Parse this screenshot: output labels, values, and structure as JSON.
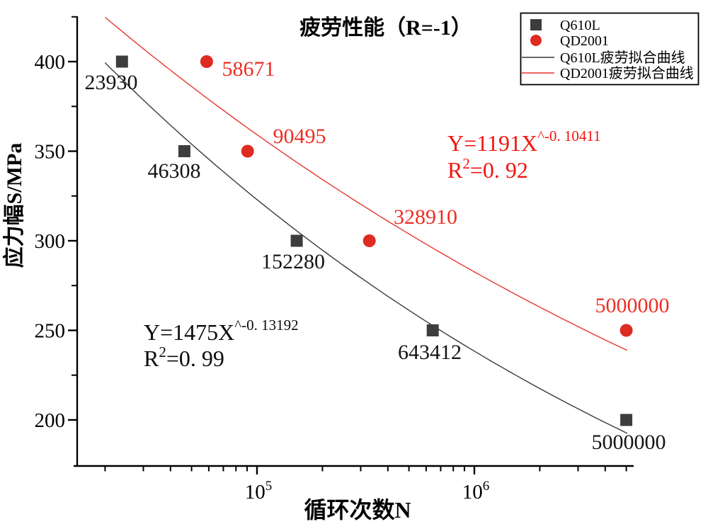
{
  "title": "疲劳性能（R=-1）",
  "legend": {
    "items": [
      {
        "label": "Q610L",
        "swatch": "square",
        "color": "#3d3d3d"
      },
      {
        "label": "QD2001",
        "swatch": "circle",
        "color": "#df2b22"
      },
      {
        "label": "Q610L疲劳拟合曲线",
        "swatch": "line",
        "color": "#3a3a3a"
      },
      {
        "label": "QD2001疲劳拟合曲线",
        "swatch": "line",
        "color": "#e8372c"
      }
    ]
  },
  "chart_data": {
    "type": "scatter",
    "title": "疲劳性能（R=-1）",
    "xlabel": "循环次数N",
    "ylabel": "应力幅S/MPa",
    "x_scale": "log10",
    "xlim": [
      15000,
      5500000
    ],
    "ylim": [
      175,
      425
    ],
    "grid": false,
    "legend_position": "top-right",
    "x_major_ticks": [
      100000,
      1000000
    ],
    "x_major_tick_labels": [
      {
        "base": "10",
        "sup": "5"
      },
      {
        "base": "10",
        "sup": "6"
      }
    ],
    "x_minor_tick_multipliers": [
      2,
      3,
      4,
      5,
      6,
      7,
      8,
      9
    ],
    "y_major_ticks": [
      200,
      250,
      300,
      350,
      400
    ],
    "y_minor_ticks": [
      225,
      275,
      325,
      375,
      425
    ],
    "series": [
      {
        "id": "q610l",
        "name": "Q610L",
        "type": "scatter",
        "marker": "square",
        "color": "#3d3d3d",
        "label_color": "#141414",
        "points": [
          {
            "x": 23930,
            "y": 400,
            "label": "23930",
            "label_dx": -15,
            "label_dy": 29
          },
          {
            "x": 46308,
            "y": 350,
            "label": "46308",
            "label_dx": -14,
            "label_dy": 27
          },
          {
            "x": 152280,
            "y": 300,
            "label": "152280",
            "label_dx": -5,
            "label_dy": 29
          },
          {
            "x": 643412,
            "y": 250,
            "label": "643412",
            "label_dx": -4,
            "label_dy": 30
          },
          {
            "x": 5000000,
            "y": 200,
            "label": "5000000",
            "label_dx": 3,
            "label_dy": 31
          }
        ]
      },
      {
        "id": "qd2001",
        "name": "QD2001",
        "type": "scatter",
        "marker": "circle",
        "color": "#df2b22",
        "label_color": "#ee2d22",
        "points": [
          {
            "x": 58671,
            "y": 400,
            "label": "58671",
            "label_dx": 59,
            "label_dy": 10
          },
          {
            "x": 90495,
            "y": 350,
            "label": "90495",
            "label_dx": 73,
            "label_dy": -22
          },
          {
            "x": 328910,
            "y": 300,
            "label": "328910",
            "label_dx": 79,
            "label_dy": -34
          },
          {
            "x": 5000000,
            "y": 250,
            "label": "5000000",
            "label_dx": 8,
            "label_dy": -36
          }
        ]
      },
      {
        "id": "q610l-fit",
        "name": "Q610L疲劳拟合曲线",
        "type": "fit_line",
        "color": "#3a3a3a",
        "a": 1475,
        "b": -0.13192,
        "r_squared": 0.99,
        "x_range": [
          20000,
          5050000
        ],
        "equation": {
          "base": "Y=1475X",
          "exponent": "^-0. 13192",
          "r2_base": "R",
          "r2_sup": "2",
          "r2_rest": "=0. 99"
        }
      },
      {
        "id": "qd2001-fit",
        "name": "QD2001疲劳拟合曲线",
        "type": "fit_line",
        "color": "#e8372c",
        "a": 1191,
        "b": -0.10411,
        "r_squared": 0.92,
        "x_range": [
          20000,
          5050000
        ],
        "equation": {
          "base": "Y=1191X",
          "exponent": "^-0. 10411",
          "r2_base": "R",
          "r2_sup": "2",
          "r2_rest": "=0. 92"
        }
      }
    ]
  }
}
